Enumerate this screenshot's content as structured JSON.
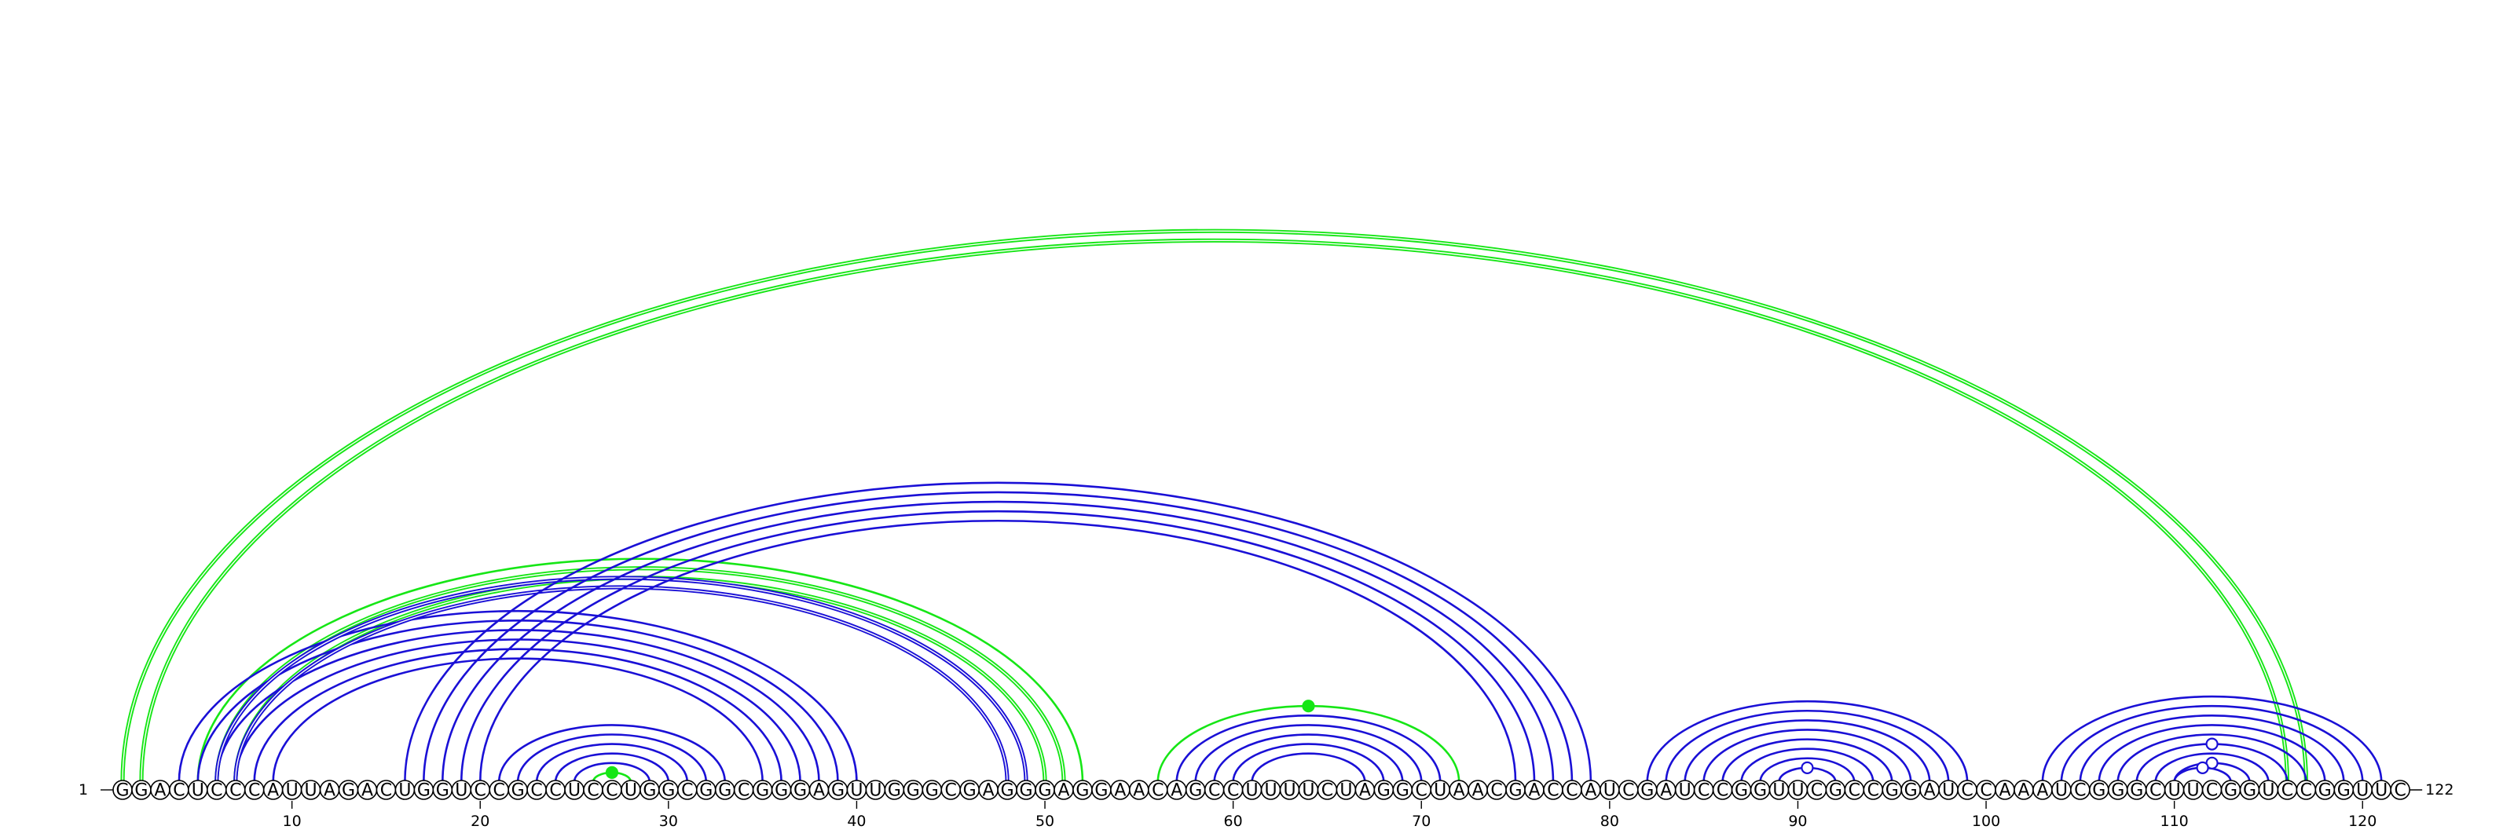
{
  "diagram": {
    "type": "rna-arc-diagram",
    "sequence": "GGACUCCCAUUAGACUGGUCCGCCUCCUGGCGGCGGGAGUUGGGCGAGGGAGGAACAGCCUUUUCUAGGCUAACGACCAUCGAUCCGGUUCGCCGGAUCCAAAUCGGGCUUCGGUCCGGUUC",
    "length": 122,
    "start_label": "1",
    "end_label": "122",
    "ticks": [
      10,
      20,
      30,
      40,
      50,
      60,
      70,
      80,
      90,
      100,
      110,
      120
    ],
    "colors": {
      "blue": "#1a10d6",
      "green": "#16e616",
      "open_marker_fill": "#ffffff"
    },
    "arc_groups": [
      {
        "name": "helix-a",
        "color": "green",
        "weight": "thick",
        "pairs": [
          [
            1,
            117
          ],
          [
            2,
            116
          ]
        ]
      },
      {
        "name": "helix-b",
        "color": "green",
        "weight": "thick",
        "pairs": [
          [
            6,
            51
          ],
          [
            7,
            50
          ]
        ]
      },
      {
        "name": "helix-c",
        "color": "green",
        "weight": "thin",
        "pairs": [
          [
            5,
            52
          ]
        ]
      },
      {
        "name": "helix-d",
        "color": "blue",
        "weight": "thin",
        "pairs": [
          [
            4,
            40
          ]
        ]
      },
      {
        "name": "helix-e",
        "color": "blue",
        "weight": "thin",
        "pairs": [
          [
            5,
            39
          ],
          [
            6,
            38
          ],
          [
            7,
            37
          ]
        ]
      },
      {
        "name": "helix-f",
        "color": "blue",
        "weight": "thick",
        "pairs": [
          [
            6,
            49
          ],
          [
            7,
            48
          ]
        ]
      },
      {
        "name": "helix-g",
        "color": "blue",
        "weight": "thin",
        "pairs": [
          [
            8,
            36
          ],
          [
            9,
            35
          ]
        ]
      },
      {
        "name": "helix-h",
        "color": "blue",
        "weight": "thin",
        "pairs": [
          [
            16,
            79
          ],
          [
            17,
            78
          ],
          [
            18,
            77
          ],
          [
            19,
            76
          ],
          [
            20,
            75
          ]
        ]
      },
      {
        "name": "helix-i",
        "color": "blue",
        "weight": "thin",
        "pairs": [
          [
            21,
            33
          ],
          [
            22,
            32
          ],
          [
            23,
            31
          ],
          [
            24,
            30
          ],
          [
            25,
            29
          ]
        ]
      },
      {
        "name": "hairpin-26-27",
        "color": "green",
        "weight": "thin",
        "pairs": [
          [
            26,
            28
          ]
        ],
        "marker": "filled"
      },
      {
        "name": "helix-j",
        "color": "green",
        "weight": "thin",
        "pairs": [
          [
            56,
            72
          ]
        ],
        "marker": "filled"
      },
      {
        "name": "helix-k",
        "color": "blue",
        "weight": "thin",
        "pairs": [
          [
            57,
            71
          ],
          [
            58,
            70
          ],
          [
            59,
            69
          ],
          [
            60,
            68
          ],
          [
            61,
            67
          ]
        ]
      },
      {
        "name": "helix-l",
        "color": "blue",
        "weight": "thin",
        "pairs": [
          [
            82,
            99
          ],
          [
            83,
            98
          ],
          [
            84,
            97
          ],
          [
            85,
            96
          ],
          [
            86,
            95
          ],
          [
            87,
            94
          ],
          [
            88,
            93
          ],
          [
            89,
            92
          ]
        ],
        "marker": "open"
      },
      {
        "name": "helix-m",
        "color": "blue",
        "weight": "thin",
        "pairs": [
          [
            103,
            121
          ],
          [
            104,
            120
          ],
          [
            105,
            119
          ]
        ]
      },
      {
        "name": "helix-n",
        "color": "blue",
        "weight": "thin",
        "pairs": [
          [
            106,
            118
          ],
          [
            107,
            117
          ],
          [
            108,
            116
          ]
        ],
        "marker": "open"
      },
      {
        "name": "helix-o",
        "color": "blue",
        "weight": "thin",
        "pairs": [
          [
            109,
            115
          ],
          [
            110,
            114
          ]
        ],
        "marker": "open"
      },
      {
        "name": "helix-p",
        "color": "blue",
        "weight": "thin",
        "pairs": [
          [
            110,
            113
          ]
        ],
        "marker": "open"
      }
    ]
  }
}
